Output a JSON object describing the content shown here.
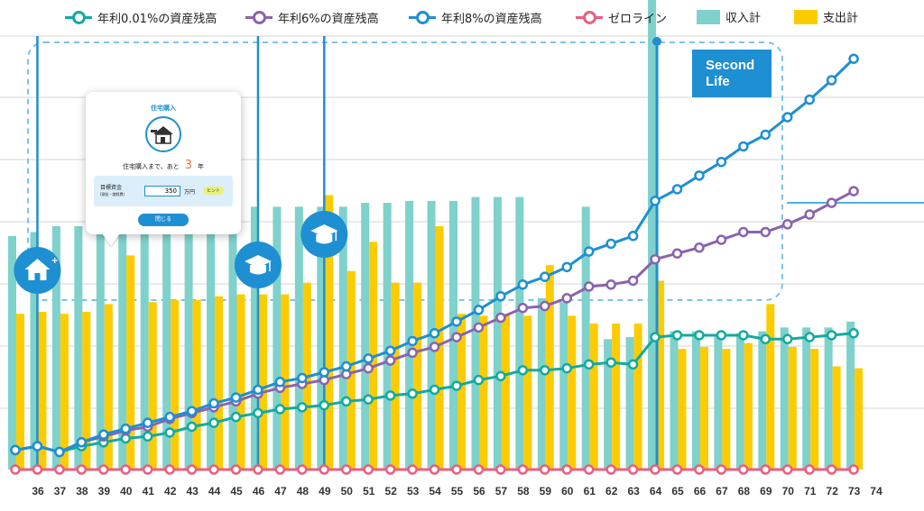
{
  "legend": {
    "items": [
      {
        "label": "年利0.01%の資産残高",
        "color": "#13aa9e",
        "kind": "line"
      },
      {
        "label": "年利6%の資産残高",
        "color": "#8a63ad",
        "kind": "line"
      },
      {
        "label": "年利8%の資産残高",
        "color": "#1e8fd2",
        "kind": "line"
      },
      {
        "label": "ゼロライン",
        "color": "#e95f80",
        "kind": "line"
      },
      {
        "label": "収入計",
        "color": "#7fd1cb",
        "kind": "box"
      },
      {
        "label": "支出計",
        "color": "#fccc00",
        "kind": "box"
      }
    ]
  },
  "popup": {
    "title": "住宅購入",
    "text_prefix": "住宅購入まで、あと",
    "years": "3",
    "years_unit": "年",
    "target_label_1": "目標資金",
    "target_label_2": "(頭金・諸経費)",
    "target_value": "350",
    "target_unit": "万円",
    "hint": "ヒント",
    "close_label": "閉じる"
  },
  "events": [
    {
      "age": 37,
      "icon": "house-plus-icon"
    },
    {
      "age": 47,
      "icon": "graduation-cap-icon"
    },
    {
      "age": 50,
      "icon": "graduation-cap-icon"
    }
  ],
  "second_life": {
    "age": 65,
    "label_line1": "Second",
    "label_line2": "Life"
  },
  "chart_data": {
    "type": "bar",
    "title": "",
    "xlabel": "",
    "ylabel": "",
    "grid": true,
    "legend_position": "top",
    "categories": [
      "36",
      "37",
      "38",
      "39",
      "40",
      "41",
      "42",
      "43",
      "44",
      "45",
      "46",
      "47",
      "48",
      "49",
      "50",
      "51",
      "52",
      "53",
      "54",
      "55",
      "56",
      "57",
      "58",
      "59",
      "60",
      "61",
      "62",
      "63",
      "64",
      "65",
      "66",
      "67",
      "68",
      "69",
      "70",
      "71",
      "72",
      "73",
      "74"
    ],
    "series": [
      {
        "name": "収入計",
        "type": "bar",
        "color": "#7fd1cb",
        "values": [
          1.2,
          1.22,
          1.25,
          1.25,
          1.25,
          1.25,
          1.28,
          1.28,
          1.3,
          1.3,
          1.33,
          1.35,
          1.35,
          1.35,
          1.35,
          1.35,
          1.37,
          1.37,
          1.38,
          1.38,
          1.38,
          1.4,
          1.4,
          1.4,
          0.88,
          0.86,
          1.35,
          0.67,
          0.68,
          3.45,
          0.71,
          0.71,
          0.69,
          0.7,
          0.71,
          0.73,
          0.73,
          0.73,
          0.76
        ]
      },
      {
        "name": "支出計",
        "type": "bar",
        "color": "#fccc00",
        "values": [
          0.8,
          0.81,
          0.8,
          0.81,
          0.85,
          1.1,
          0.86,
          0.87,
          0.87,
          0.89,
          0.9,
          0.9,
          0.9,
          0.96,
          1.41,
          1.02,
          1.17,
          0.96,
          0.96,
          1.25,
          0.8,
          0.79,
          0.8,
          0.79,
          1.05,
          0.79,
          0.75,
          0.75,
          0.75,
          0.97,
          0.62,
          0.63,
          0.62,
          0.65,
          0.85,
          0.63,
          0.62,
          0.53,
          0.52
        ]
      },
      {
        "name": "年利0.01%の資産残高",
        "type": "line",
        "color": "#13aa9e",
        "values": [
          0.1,
          0.12,
          0.09,
          0.12,
          0.14,
          0.16,
          0.17,
          0.19,
          0.22,
          0.24,
          0.27,
          0.29,
          0.31,
          0.32,
          0.33,
          0.35,
          0.36,
          0.38,
          0.39,
          0.41,
          0.43,
          0.46,
          0.48,
          0.51,
          0.51,
          0.52,
          0.54,
          0.55,
          0.54,
          0.68,
          0.69,
          0.69,
          0.69,
          0.69,
          0.67,
          0.67,
          0.68,
          0.69,
          0.7
        ]
      },
      {
        "name": "年利6%の資産残高",
        "type": "line",
        "color": "#8a63ad",
        "values": [
          0.1,
          0.12,
          0.09,
          0.14,
          0.17,
          0.2,
          0.22,
          0.26,
          0.29,
          0.32,
          0.35,
          0.39,
          0.42,
          0.44,
          0.46,
          0.49,
          0.52,
          0.56,
          0.6,
          0.63,
          0.68,
          0.73,
          0.78,
          0.83,
          0.84,
          0.88,
          0.94,
          0.95,
          0.97,
          1.08,
          1.11,
          1.14,
          1.18,
          1.22,
          1.22,
          1.26,
          1.31,
          1.37,
          1.43
        ]
      },
      {
        "name": "年利8%の資産残高",
        "type": "line",
        "color": "#1e8fd2",
        "values": [
          0.1,
          0.12,
          0.09,
          0.14,
          0.18,
          0.21,
          0.24,
          0.27,
          0.3,
          0.34,
          0.37,
          0.41,
          0.45,
          0.47,
          0.5,
          0.53,
          0.57,
          0.61,
          0.66,
          0.7,
          0.76,
          0.82,
          0.89,
          0.95,
          0.99,
          1.04,
          1.12,
          1.16,
          1.2,
          1.38,
          1.44,
          1.51,
          1.58,
          1.66,
          1.72,
          1.81,
          1.9,
          2.0,
          2.11
        ]
      },
      {
        "name": "ゼロライン",
        "type": "line",
        "color": "#e95f80",
        "values": [
          0,
          0,
          0,
          0,
          0,
          0,
          0,
          0,
          0,
          0,
          0,
          0,
          0,
          0,
          0,
          0,
          0,
          0,
          0,
          0,
          0,
          0,
          0,
          0,
          0,
          0,
          0,
          0,
          0,
          0,
          0,
          0,
          0,
          0,
          0,
          0,
          0,
          0,
          0
        ]
      }
    ]
  }
}
